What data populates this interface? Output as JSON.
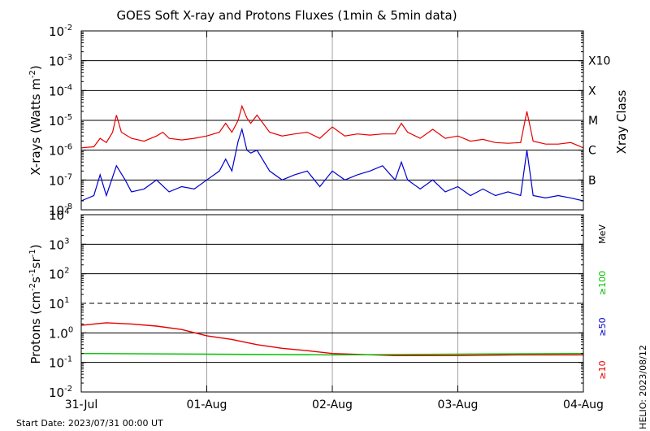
{
  "title": "GOES Soft X-ray and Protons Fluxes   (1min & 5min data)",
  "start_date": "Start Date: 2023/07/31 00:00 UT",
  "credit": "HELIO: 2023/08/12",
  "colors": {
    "red": "#e60000",
    "blue": "#0000d0",
    "green": "#00c000",
    "grid": "#a0a0a0"
  },
  "chart_data": [
    {
      "type": "line",
      "ylabel_main": "X-rays (Watts m",
      "ylabel_sup": "-2",
      "ylabel_close": ")",
      "yscale": "log",
      "ylim": [
        1e-08,
        0.01
      ],
      "yticks": [
        {
          "exp": -2,
          "label": "-2"
        },
        {
          "exp": -3,
          "label": "-3"
        },
        {
          "exp": -4,
          "label": "-4"
        },
        {
          "exp": -5,
          "label": "-5"
        },
        {
          "exp": -6,
          "label": "-6"
        },
        {
          "exp": -7,
          "label": "-7"
        },
        {
          "exp": -8,
          "label": "-8"
        }
      ],
      "right_label": "Xray Class",
      "classes": [
        {
          "name": "X10",
          "exp": -3
        },
        {
          "name": "X",
          "exp": -4
        },
        {
          "name": "M",
          "exp": -5
        },
        {
          "name": "C",
          "exp": -6
        },
        {
          "name": "B",
          "exp": -7
        }
      ],
      "xlim_days": [
        0,
        4
      ],
      "series": [
        {
          "color": "red",
          "points": [
            [
              0.0,
              1.2e-06
            ],
            [
              0.1,
              1.3e-06
            ],
            [
              0.15,
              2.5e-06
            ],
            [
              0.2,
              1.8e-06
            ],
            [
              0.25,
              4e-06
            ],
            [
              0.28,
              1.5e-05
            ],
            [
              0.32,
              4e-06
            ],
            [
              0.4,
              2.5e-06
            ],
            [
              0.5,
              2e-06
            ],
            [
              0.6,
              3e-06
            ],
            [
              0.65,
              4e-06
            ],
            [
              0.7,
              2.5e-06
            ],
            [
              0.8,
              2.2e-06
            ],
            [
              0.9,
              2.5e-06
            ],
            [
              1.0,
              3e-06
            ],
            [
              1.1,
              4e-06
            ],
            [
              1.15,
              8e-06
            ],
            [
              1.2,
              4e-06
            ],
            [
              1.25,
              1e-05
            ],
            [
              1.28,
              3e-05
            ],
            [
              1.32,
              1.2e-05
            ],
            [
              1.35,
              8e-06
            ],
            [
              1.4,
              1.5e-05
            ],
            [
              1.5,
              4e-06
            ],
            [
              1.6,
              3e-06
            ],
            [
              1.7,
              3.5e-06
            ],
            [
              1.8,
              4e-06
            ],
            [
              1.9,
              2.5e-06
            ],
            [
              2.0,
              6e-06
            ],
            [
              2.1,
              3e-06
            ],
            [
              2.2,
              3.5e-06
            ],
            [
              2.3,
              3.2e-06
            ],
            [
              2.4,
              3.5e-06
            ],
            [
              2.5,
              3.5e-06
            ],
            [
              2.55,
              8e-06
            ],
            [
              2.6,
              4e-06
            ],
            [
              2.7,
              2.5e-06
            ],
            [
              2.8,
              5e-06
            ],
            [
              2.9,
              2.5e-06
            ],
            [
              3.0,
              3e-06
            ],
            [
              3.1,
              2e-06
            ],
            [
              3.2,
              2.3e-06
            ],
            [
              3.3,
              1.8e-06
            ],
            [
              3.4,
              1.7e-06
            ],
            [
              3.5,
              1.8e-06
            ],
            [
              3.55,
              2e-05
            ],
            [
              3.6,
              2e-06
            ],
            [
              3.7,
              1.6e-06
            ],
            [
              3.8,
              1.6e-06
            ],
            [
              3.9,
              1.8e-06
            ],
            [
              4.0,
              1.2e-06
            ]
          ]
        },
        {
          "color": "blue",
          "points": [
            [
              0.0,
              2e-08
            ],
            [
              0.1,
              3e-08
            ],
            [
              0.15,
              1.5e-07
            ],
            [
              0.2,
              3e-08
            ],
            [
              0.28,
              3e-07
            ],
            [
              0.35,
              1e-07
            ],
            [
              0.4,
              4e-08
            ],
            [
              0.5,
              5e-08
            ],
            [
              0.6,
              1e-07
            ],
            [
              0.7,
              4e-08
            ],
            [
              0.8,
              6e-08
            ],
            [
              0.9,
              5e-08
            ],
            [
              1.0,
              1e-07
            ],
            [
              1.1,
              2e-07
            ],
            [
              1.15,
              5e-07
            ],
            [
              1.2,
              2e-07
            ],
            [
              1.25,
              2e-06
            ],
            [
              1.28,
              5e-06
            ],
            [
              1.32,
              1e-06
            ],
            [
              1.35,
              8e-07
            ],
            [
              1.4,
              1e-06
            ],
            [
              1.5,
              2e-07
            ],
            [
              1.6,
              1e-07
            ],
            [
              1.7,
              1.5e-07
            ],
            [
              1.8,
              2e-07
            ],
            [
              1.9,
              6e-08
            ],
            [
              2.0,
              2e-07
            ],
            [
              2.1,
              1e-07
            ],
            [
              2.2,
              1.5e-07
            ],
            [
              2.3,
              2e-07
            ],
            [
              2.4,
              3e-07
            ],
            [
              2.5,
              1e-07
            ],
            [
              2.55,
              4e-07
            ],
            [
              2.6,
              1e-07
            ],
            [
              2.7,
              5e-08
            ],
            [
              2.8,
              1e-07
            ],
            [
              2.9,
              4e-08
            ],
            [
              3.0,
              6e-08
            ],
            [
              3.1,
              3e-08
            ],
            [
              3.2,
              5e-08
            ],
            [
              3.3,
              3e-08
            ],
            [
              3.4,
              4e-08
            ],
            [
              3.5,
              3e-08
            ],
            [
              3.55,
              1e-06
            ],
            [
              3.6,
              3e-08
            ],
            [
              3.7,
              2.5e-08
            ],
            [
              3.8,
              3e-08
            ],
            [
              3.9,
              2.5e-08
            ],
            [
              4.0,
              2e-08
            ]
          ]
        }
      ]
    },
    {
      "type": "line",
      "ylabel_main": "Protons (cm",
      "ylabel_sup1": "-2",
      "ylabel_mid1": "s",
      "ylabel_sup2": "-1",
      "ylabel_mid2": "sr",
      "ylabel_sup3": "-1",
      "ylabel_close": ")",
      "yscale": "log",
      "ylim": [
        0.01,
        10000
      ],
      "yticks": [
        {
          "exp": 4,
          "base": "10",
          "label": "4"
        },
        {
          "exp": 3,
          "base": "10",
          "label": "3"
        },
        {
          "exp": 2,
          "base": "10",
          "label": "2"
        },
        {
          "exp": 1,
          "base": "10",
          "label": "1"
        },
        {
          "exp": 0,
          "base": "1.0",
          "label": "0"
        },
        {
          "exp": -1,
          "base": "10",
          "label": "-1"
        },
        {
          "exp": -2,
          "base": "10",
          "label": "-2"
        }
      ],
      "threshold": 10,
      "right_labels": [
        {
          "text": "MeV",
          "color": "#000000"
        },
        {
          "text": "≥100",
          "color": "#00c000"
        },
        {
          "text": "≥50",
          "color": "#0000d0"
        },
        {
          "text": "≥10",
          "color": "#e60000"
        }
      ],
      "xlim_days": [
        0,
        4
      ],
      "xticks": [
        {
          "day": 0,
          "label": "31-Jul"
        },
        {
          "day": 1,
          "label": "01-Aug"
        },
        {
          "day": 2,
          "label": "02-Aug"
        },
        {
          "day": 3,
          "label": "03-Aug"
        },
        {
          "day": 4,
          "label": "04-Aug"
        }
      ],
      "series": [
        {
          "color": "red",
          "points": [
            [
              0.0,
              1.8
            ],
            [
              0.2,
              2.2
            ],
            [
              0.4,
              2.0
            ],
            [
              0.6,
              1.7
            ],
            [
              0.8,
              1.3
            ],
            [
              1.0,
              0.8
            ],
            [
              1.2,
              0.6
            ],
            [
              1.4,
              0.4
            ],
            [
              1.6,
              0.3
            ],
            [
              1.8,
              0.25
            ],
            [
              2.0,
              0.2
            ],
            [
              2.5,
              0.17
            ],
            [
              3.0,
              0.17
            ],
            [
              3.5,
              0.18
            ],
            [
              4.0,
              0.18
            ]
          ]
        },
        {
          "color": "green",
          "points": [
            [
              0.0,
              0.2
            ],
            [
              1.0,
              0.19
            ],
            [
              2.0,
              0.18
            ],
            [
              3.0,
              0.19
            ],
            [
              4.0,
              0.2
            ]
          ]
        }
      ]
    }
  ]
}
